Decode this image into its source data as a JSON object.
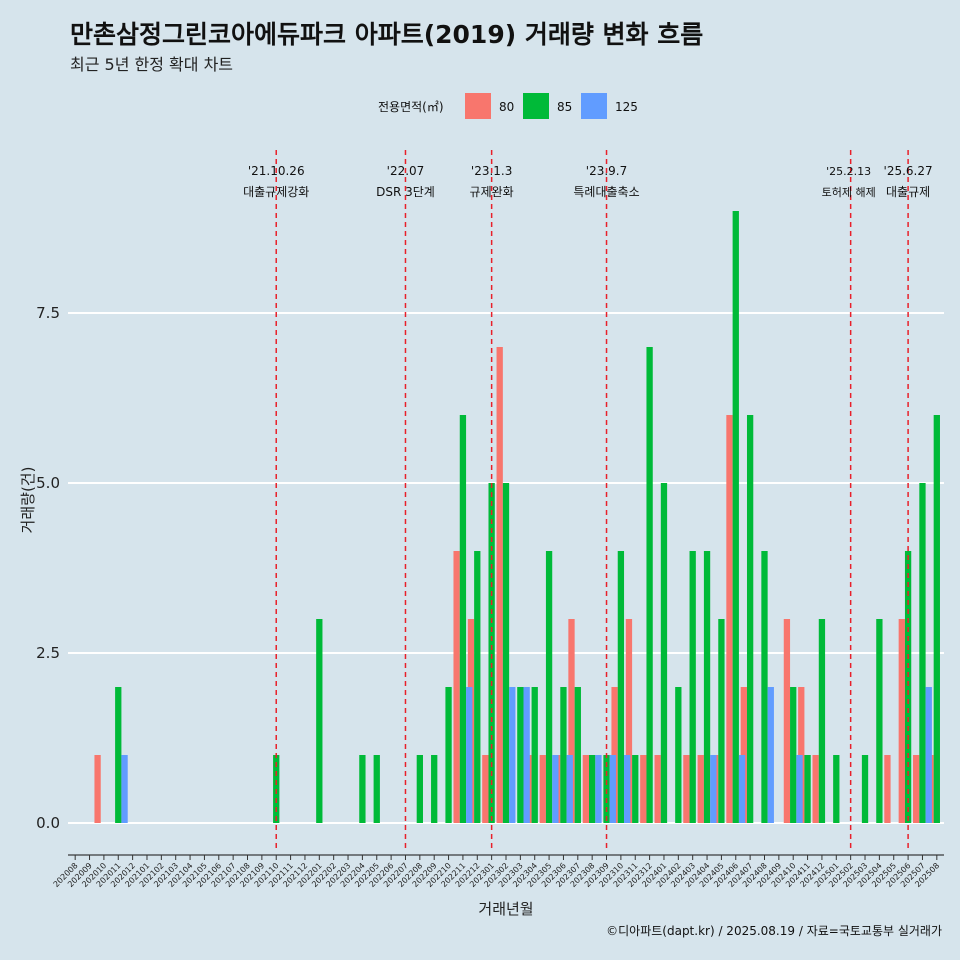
{
  "chart_data": {
    "type": "bar",
    "title": "만촌삼정그린코아에듀파크 아파트(2019) 거래량 변화 흐름",
    "subtitle": "최근 5년 한정 확대 차트",
    "xlabel": "거래년월",
    "ylabel": "거래량(건)",
    "caption": "©디아파트(dapt.kr) / 2025.08.19 / 자료=국토교통부 실거래가",
    "legend_title": "전용면적(㎡)",
    "legend_position": "top",
    "ylim": [
      -0.45,
      9.0
    ],
    "yticks": [
      0.0,
      2.5,
      5.0,
      7.5
    ],
    "ytick_labels": [
      "0.0",
      "2.5",
      "5.0",
      "7.5"
    ],
    "colors": {
      "80": "#f8766d",
      "85": "#00ba38",
      "125": "#619cff",
      "event_line": "#e8202a",
      "background": "#d6e4ec"
    },
    "categories": [
      "202008",
      "202009",
      "202010",
      "202011",
      "202012",
      "202101",
      "202102",
      "202103",
      "202104",
      "202105",
      "202106",
      "202107",
      "202108",
      "202109",
      "202110",
      "202111",
      "202112",
      "202201",
      "202202",
      "202203",
      "202204",
      "202205",
      "202206",
      "202207",
      "202208",
      "202209",
      "202210",
      "202211",
      "202212",
      "202301",
      "202302",
      "202303",
      "202304",
      "202305",
      "202306",
      "202307",
      "202308",
      "202309",
      "202310",
      "202311",
      "202312",
      "202401",
      "202402",
      "202403",
      "202404",
      "202405",
      "202406",
      "202407",
      "202408",
      "202409",
      "202410",
      "202411",
      "202412",
      "202501",
      "202502",
      "202503",
      "202504",
      "202505",
      "202506",
      "202507",
      "202508"
    ],
    "series": [
      {
        "name": "80",
        "values": [
          0,
          0,
          1,
          0,
          0,
          0,
          0,
          0,
          0,
          0,
          0,
          0,
          0,
          0,
          0,
          0,
          0,
          0,
          0,
          0,
          0,
          0,
          0,
          0,
          0,
          0,
          0,
          4,
          3,
          1,
          7,
          0,
          1,
          1,
          1,
          3,
          1,
          0,
          2,
          3,
          1,
          1,
          0,
          1,
          1,
          1,
          6,
          2,
          0,
          0,
          3,
          2,
          1,
          0,
          0,
          0,
          0,
          1,
          3,
          1,
          1
        ]
      },
      {
        "name": "85",
        "values": [
          0,
          0,
          0,
          2,
          0,
          0,
          0,
          0,
          0,
          0,
          0,
          0,
          0,
          0,
          1,
          0,
          0,
          3,
          0,
          0,
          1,
          1,
          0,
          0,
          1,
          1,
          2,
          6,
          4,
          5,
          5,
          2,
          2,
          4,
          2,
          2,
          1,
          1,
          4,
          1,
          7,
          5,
          2,
          4,
          4,
          3,
          9,
          6,
          4,
          0,
          2,
          1,
          3,
          1,
          0,
          1,
          3,
          0,
          4,
          5,
          6
        ]
      },
      {
        "name": "125",
        "values": [
          0,
          0,
          0,
          1,
          0,
          0,
          0,
          0,
          0,
          0,
          0,
          0,
          0,
          0,
          0,
          0,
          0,
          0,
          0,
          0,
          0,
          0,
          0,
          0,
          0,
          0,
          0,
          2,
          0,
          0,
          2,
          2,
          0,
          1,
          1,
          0,
          1,
          1,
          1,
          0,
          0,
          0,
          0,
          0,
          1,
          0,
          1,
          0,
          2,
          0,
          1,
          0,
          0,
          0,
          0,
          0,
          0,
          0,
          0,
          2,
          0
        ]
      }
    ],
    "events": [
      {
        "date": "'21.10.26",
        "label": "대출규제강화",
        "index": 14.5
      },
      {
        "date": "'22.07",
        "label": "DSR 3단계",
        "index": 23.5
      },
      {
        "date": "'23.1.3",
        "label": "규제완화",
        "index": 29.5
      },
      {
        "date": "'23.9.7",
        "label": "특례대출축소",
        "index": 37.5
      },
      {
        "date": "'25.2.13",
        "label": "토허제 해제",
        "index": 54.5
      },
      {
        "date": "'25.6.27",
        "label": "대출규제",
        "index": 58.5
      }
    ]
  }
}
